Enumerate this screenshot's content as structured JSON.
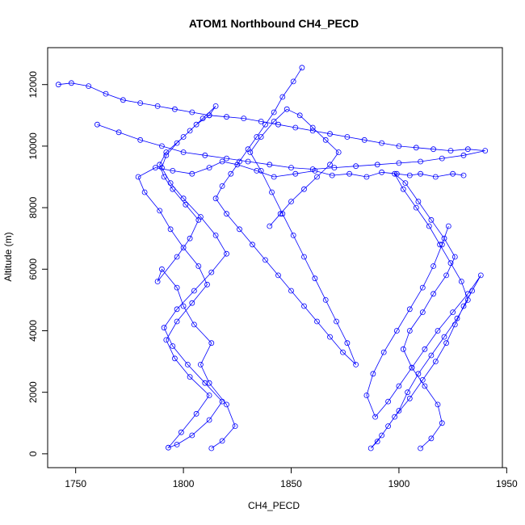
{
  "chart_data": {
    "type": "line",
    "title": "ATOM1 Northbound CH4_PECD",
    "xlabel": "CH4_PECD",
    "ylabel": "Altitude (m)",
    "xlim": [
      1737,
      1948
    ],
    "ylim": [
      -450,
      13200
    ],
    "xticks": [
      "1750",
      "1800",
      "1850",
      "1900",
      "1950"
    ],
    "yticks": [
      "0",
      "2000",
      "4000",
      "6000",
      "8000",
      "10000",
      "12000"
    ],
    "grid": false,
    "legend": "none",
    "line_color": "#0000ff",
    "marker": "open-circle",
    "series": [
      {
        "x": [
          1813,
          1818,
          1824,
          1820,
          1812,
          1808,
          1813,
          1805,
          1800,
          1797,
          1790,
          1788,
          1797,
          1803,
          1807,
          1801,
          1795,
          1791,
          1789,
          1792,
          1800,
          1806,
          1812,
          1815,
          1809,
          1803,
          1797,
          1792,
          1790,
          1794,
          1800,
          1808,
          1815,
          1820,
          1813,
          1805,
          1797,
          1791,
          1795,
          1802,
          1810,
          1818,
          1812,
          1804,
          1797,
          1793,
          1799,
          1806,
          1812,
          1803,
          1796,
          1792,
          1797,
          1804,
          1811,
          1807,
          1800,
          1794,
          1789,
          1782,
          1779,
          1787,
          1795,
          1804,
          1812,
          1818,
          1825,
          1834,
          1842,
          1852,
          1861,
          1869,
          1877,
          1885,
          1892,
          1899,
          1905,
          1910,
          1917,
          1925,
          1930
        ],
        "y": [
          180,
          420,
          900,
          1600,
          2300,
          2900,
          3600,
          4200,
          4800,
          5400,
          6000,
          5600,
          6400,
          7000,
          7600,
          8100,
          8600,
          9000,
          9400,
          9800,
          10300,
          10700,
          11000,
          11300,
          10900,
          10500,
          10100,
          9700,
          9300,
          8800,
          8300,
          7700,
          7100,
          6500,
          5900,
          5300,
          4700,
          4100,
          3500,
          2900,
          2300,
          1700,
          1100,
          600,
          300,
          200,
          700,
          1300,
          1900,
          2500,
          3100,
          3700,
          4300,
          4900,
          5500,
          6100,
          6700,
          7300,
          7900,
          8500,
          9000,
          9300,
          9200,
          9100,
          9300,
          9500,
          9400,
          9200,
          9000,
          9100,
          9200,
          9050,
          9100,
          9000,
          9150,
          9100,
          9050,
          9100,
          9000,
          9100,
          9050
        ]
      },
      {
        "x": [
          1910,
          1915,
          1920,
          1918,
          1912,
          1906,
          1902,
          1905,
          1911,
          1916,
          1922,
          1926,
          1921,
          1915,
          1909,
          1903,
          1898,
          1902,
          1908,
          1914,
          1919,
          1924,
          1929,
          1932,
          1927,
          1921,
          1915,
          1909,
          1904,
          1900,
          1895,
          1890,
          1887,
          1892,
          1898,
          1905,
          1911,
          1917,
          1922,
          1926,
          1930,
          1934,
          1938,
          1932,
          1925,
          1918,
          1912,
          1906,
          1900,
          1895,
          1889,
          1885,
          1888,
          1893,
          1899,
          1905,
          1911,
          1916,
          1920,
          1923
        ],
        "y": [
          180,
          500,
          1000,
          1600,
          2200,
          2800,
          3400,
          4000,
          4600,
          5200,
          5800,
          6400,
          7000,
          7600,
          8200,
          8800,
          9100,
          8600,
          8000,
          7400,
          6800,
          6200,
          5600,
          5000,
          4400,
          3800,
          3200,
          2600,
          2000,
          1400,
          900,
          400,
          180,
          600,
          1200,
          1800,
          2400,
          3000,
          3600,
          4200,
          4800,
          5300,
          5800,
          5200,
          4600,
          4000,
          3400,
          2800,
          2200,
          1700,
          1200,
          1900,
          2600,
          3300,
          4000,
          4700,
          5400,
          6100,
          6800,
          7400
        ]
      },
      {
        "x": [
          1855,
          1851,
          1846,
          1842,
          1838,
          1834,
          1830,
          1826,
          1822,
          1818,
          1815,
          1820,
          1826,
          1832,
          1838,
          1844,
          1850,
          1856,
          1862,
          1868,
          1874,
          1880,
          1876,
          1871,
          1866,
          1861,
          1856,
          1851,
          1846,
          1841,
          1836,
          1831,
          1836,
          1842,
          1848,
          1854,
          1860,
          1866,
          1872,
          1868,
          1862,
          1856,
          1850,
          1845,
          1840
        ],
        "y": [
          12550,
          12100,
          11600,
          11100,
          10700,
          10300,
          9900,
          9500,
          9100,
          8700,
          8300,
          7800,
          7300,
          6800,
          6300,
          5800,
          5300,
          4800,
          4300,
          3800,
          3300,
          2900,
          3600,
          4300,
          5000,
          5700,
          6400,
          7100,
          7800,
          8500,
          9200,
          9800,
          10300,
          10800,
          11200,
          11000,
          10600,
          10200,
          9800,
          9400,
          9000,
          8600,
          8200,
          7800,
          7400
        ]
      },
      {
        "x": [
          1742,
          1748,
          1756,
          1764,
          1772,
          1780,
          1788,
          1796,
          1804,
          1812,
          1820,
          1828,
          1836,
          1844,
          1852,
          1860,
          1868,
          1876,
          1884,
          1892,
          1900,
          1908,
          1916,
          1924,
          1932,
          1940,
          1930,
          1920,
          1910,
          1900,
          1890,
          1880,
          1870,
          1860,
          1850,
          1840,
          1830,
          1820,
          1810,
          1800,
          1790,
          1780,
          1770,
          1760
        ],
        "y": [
          12000,
          12050,
          11950,
          11700,
          11500,
          11400,
          11300,
          11200,
          11100,
          11000,
          10950,
          10900,
          10800,
          10700,
          10600,
          10500,
          10400,
          10300,
          10200,
          10100,
          10000,
          9950,
          9900,
          9850,
          9900,
          9850,
          9700,
          9600,
          9500,
          9450,
          9400,
          9350,
          9300,
          9250,
          9300,
          9400,
          9500,
          9600,
          9700,
          9800,
          10000,
          10200,
          10450,
          10700
        ]
      }
    ]
  }
}
